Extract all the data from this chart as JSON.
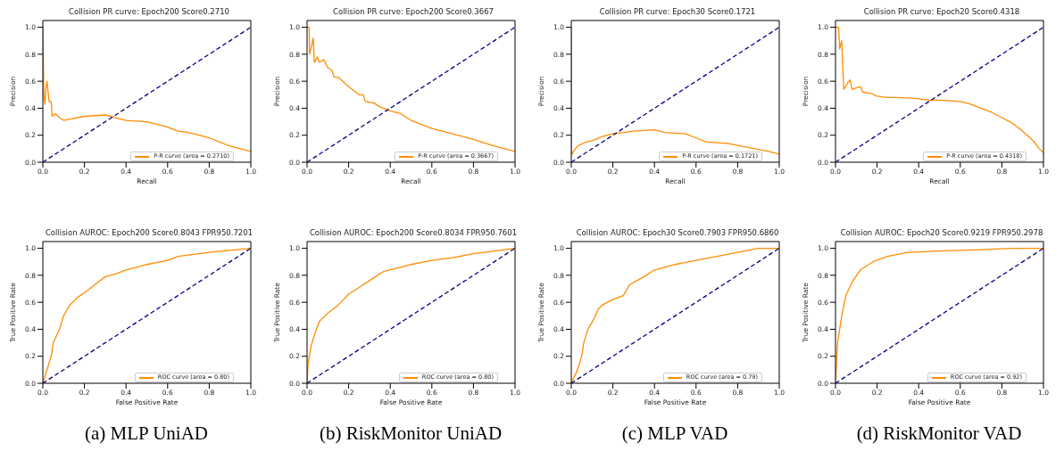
{
  "chart_data": [
    {
      "type": "line",
      "title": "Collision PR curve: Epoch200 Score0.2710",
      "xlabel": "Recall",
      "ylabel": "Precision",
      "xlim": [
        0,
        1
      ],
      "ylim": [
        0,
        1.05
      ],
      "xticks": [
        {
          "value": 0,
          "label": "0.0"
        },
        {
          "value": 0.2,
          "label": "0.2"
        },
        {
          "value": 0.4,
          "label": "0.4"
        },
        {
          "value": 0.6,
          "label": "0.6"
        },
        {
          "value": 0.8,
          "label": "0.8"
        },
        {
          "value": 1,
          "label": "1.0"
        }
      ],
      "yticks": [
        {
          "value": 0,
          "label": "0.0"
        },
        {
          "value": 0.2,
          "label": "0.2"
        },
        {
          "value": 0.4,
          "label": "0.4"
        },
        {
          "value": 0.6,
          "label": "0.6"
        },
        {
          "value": 0.8,
          "label": "0.8"
        },
        {
          "value": 1,
          "label": "1.0"
        }
      ],
      "legend": "bottom right",
      "series": [
        {
          "name": "P-R curve (area = 0.2710)",
          "color": "#ff8c00",
          "x": [
            0,
            0.005,
            0.01,
            0.015,
            0.02,
            0.03,
            0.04,
            0.045,
            0.06,
            0.08,
            0.1,
            0.13,
            0.2,
            0.3,
            0.35,
            0.4,
            0.5,
            0.6,
            0.65,
            0.7,
            0.8,
            0.85,
            0.9,
            0.95,
            1.0
          ],
          "values": [
            1.0,
            0.5,
            0.43,
            0.55,
            0.6,
            0.45,
            0.45,
            0.34,
            0.36,
            0.33,
            0.31,
            0.32,
            0.34,
            0.35,
            0.33,
            0.31,
            0.3,
            0.26,
            0.23,
            0.22,
            0.18,
            0.15,
            0.12,
            0.1,
            0.08
          ]
        },
        {
          "color": "#000080",
          "line_style": "dashed",
          "x": [
            0,
            1
          ],
          "values": [
            0,
            1
          ]
        }
      ]
    },
    {
      "type": "line",
      "title": "Collision PR curve: Epoch200 Score0.3667",
      "xlabel": "Recall",
      "ylabel": "Precision",
      "xlim": [
        0,
        1
      ],
      "ylim": [
        0,
        1.05
      ],
      "xticks": [
        {
          "value": 0,
          "label": "0.0"
        },
        {
          "value": 0.2,
          "label": "0.2"
        },
        {
          "value": 0.4,
          "label": "0.4"
        },
        {
          "value": 0.6,
          "label": "0.6"
        },
        {
          "value": 0.8,
          "label": "0.8"
        },
        {
          "value": 1,
          "label": "1.0"
        }
      ],
      "yticks": [
        {
          "value": 0,
          "label": "0.0"
        },
        {
          "value": 0.2,
          "label": "0.2"
        },
        {
          "value": 0.4,
          "label": "0.4"
        },
        {
          "value": 0.6,
          "label": "0.6"
        },
        {
          "value": 0.8,
          "label": "0.8"
        },
        {
          "value": 1,
          "label": "1.0"
        }
      ],
      "legend": "bottom right",
      "series": [
        {
          "name": "P-R curve (area = 0.3667)",
          "color": "#ff8c00",
          "x": [
            0,
            0.01,
            0.012,
            0.02,
            0.03,
            0.035,
            0.05,
            0.06,
            0.08,
            0.1,
            0.12,
            0.13,
            0.15,
            0.2,
            0.25,
            0.27,
            0.28,
            0.32,
            0.35,
            0.4,
            0.45,
            0.5,
            0.55,
            0.6,
            0.7,
            0.8,
            0.9,
            1.0
          ],
          "values": [
            1.0,
            1.0,
            0.8,
            0.85,
            0.92,
            0.74,
            0.78,
            0.74,
            0.76,
            0.7,
            0.68,
            0.63,
            0.63,
            0.56,
            0.5,
            0.5,
            0.45,
            0.44,
            0.41,
            0.38,
            0.36,
            0.31,
            0.28,
            0.25,
            0.21,
            0.17,
            0.12,
            0.08
          ]
        },
        {
          "color": "#000080",
          "line_style": "dashed",
          "x": [
            0,
            1
          ],
          "values": [
            0,
            1
          ]
        }
      ]
    },
    {
      "type": "line",
      "title": "Collision PR curve: Epoch30 Score0.1721",
      "xlabel": "Recall",
      "ylabel": "Precision",
      "xlim": [
        0,
        1
      ],
      "ylim": [
        0,
        1.05
      ],
      "xticks": [
        {
          "value": 0,
          "label": "0.0"
        },
        {
          "value": 0.2,
          "label": "0.2"
        },
        {
          "value": 0.4,
          "label": "0.4"
        },
        {
          "value": 0.6,
          "label": "0.6"
        },
        {
          "value": 0.8,
          "label": "0.8"
        },
        {
          "value": 1,
          "label": "1.0"
        }
      ],
      "yticks": [
        {
          "value": 0,
          "label": "0.0"
        },
        {
          "value": 0.2,
          "label": "0.2"
        },
        {
          "value": 0.4,
          "label": "0.4"
        },
        {
          "value": 0.6,
          "label": "0.6"
        },
        {
          "value": 0.8,
          "label": "0.8"
        },
        {
          "value": 1,
          "label": "1.0"
        }
      ],
      "legend": "bottom right",
      "series": [
        {
          "name": "P-R curve (area = 0.1721)",
          "color": "#ff8c00",
          "x": [
            0,
            0,
            0.01,
            0.03,
            0.07,
            0.1,
            0.15,
            0.2,
            0.3,
            0.4,
            0.45,
            0.55,
            0.6,
            0.65,
            0.75,
            0.85,
            0.95,
            1.0
          ],
          "values": [
            1.0,
            0.05,
            0.08,
            0.12,
            0.15,
            0.16,
            0.19,
            0.21,
            0.23,
            0.24,
            0.22,
            0.21,
            0.18,
            0.15,
            0.14,
            0.11,
            0.08,
            0.06
          ]
        },
        {
          "color": "#000080",
          "line_style": "dashed",
          "x": [
            0,
            1
          ],
          "values": [
            0,
            1
          ]
        }
      ]
    },
    {
      "type": "line",
      "title": "Collision PR curve: Epoch20 Score0.4318",
      "xlabel": "Recall",
      "ylabel": "Precision",
      "xlim": [
        0,
        1
      ],
      "ylim": [
        0,
        1.05
      ],
      "xticks": [
        {
          "value": 0,
          "label": "0.0"
        },
        {
          "value": 0.2,
          "label": "0.2"
        },
        {
          "value": 0.4,
          "label": "0.4"
        },
        {
          "value": 0.6,
          "label": "0.6"
        },
        {
          "value": 0.8,
          "label": "0.8"
        },
        {
          "value": 1,
          "label": "1.0"
        }
      ],
      "yticks": [
        {
          "value": 0,
          "label": "0.0"
        },
        {
          "value": 0.2,
          "label": "0.2"
        },
        {
          "value": 0.4,
          "label": "0.4"
        },
        {
          "value": 0.6,
          "label": "0.6"
        },
        {
          "value": 0.8,
          "label": "0.8"
        },
        {
          "value": 1,
          "label": "1.0"
        }
      ],
      "legend": "bottom right",
      "series": [
        {
          "name": "P-R curve (area = 0.4318)",
          "color": "#ff8c00",
          "x": [
            0,
            0.015,
            0.02,
            0.03,
            0.035,
            0.04,
            0.06,
            0.07,
            0.08,
            0.1,
            0.12,
            0.13,
            0.17,
            0.2,
            0.25,
            0.3,
            0.4,
            0.45,
            0.5,
            0.6,
            0.65,
            0.7,
            0.75,
            0.8,
            0.85,
            0.9,
            0.95,
            0.98,
            1.0
          ],
          "values": [
            1.0,
            1.0,
            0.84,
            0.9,
            0.7,
            0.54,
            0.59,
            0.61,
            0.54,
            0.55,
            0.56,
            0.52,
            0.51,
            0.49,
            0.48,
            0.48,
            0.47,
            0.46,
            0.46,
            0.45,
            0.43,
            0.4,
            0.37,
            0.33,
            0.29,
            0.23,
            0.16,
            0.1,
            0.07
          ]
        },
        {
          "color": "#000080",
          "line_style": "dashed",
          "x": [
            0,
            1
          ],
          "values": [
            0,
            1
          ]
        }
      ]
    },
    {
      "type": "line",
      "title": "Collision AUROC: Epoch200 Score0.8043  FPR950.7201",
      "xlabel": "False Positive Rate",
      "ylabel": "True Positive Rate",
      "annotations": [
        "(a) MLP UniAD"
      ],
      "xlim": [
        0,
        1
      ],
      "ylim": [
        0,
        1.05
      ],
      "xticks": [
        {
          "value": 0,
          "label": "0.0"
        },
        {
          "value": 0.2,
          "label": "0.2"
        },
        {
          "value": 0.4,
          "label": "0.4"
        },
        {
          "value": 0.6,
          "label": "0.6"
        },
        {
          "value": 0.8,
          "label": "0.8"
        },
        {
          "value": 1,
          "label": "1.0"
        }
      ],
      "yticks": [
        {
          "value": 0,
          "label": "0.0"
        },
        {
          "value": 0.2,
          "label": "0.2"
        },
        {
          "value": 0.4,
          "label": "0.4"
        },
        {
          "value": 0.6,
          "label": "0.6"
        },
        {
          "value": 0.8,
          "label": "0.8"
        },
        {
          "value": 1,
          "label": "1.0"
        }
      ],
      "legend": "bottom right",
      "series": [
        {
          "name": "ROC curve (area = 0.80)",
          "color": "#ff8c00",
          "x": [
            0,
            0.02,
            0.04,
            0.05,
            0.08,
            0.1,
            0.13,
            0.17,
            0.2,
            0.25,
            0.3,
            0.35,
            0.4,
            0.45,
            0.5,
            0.6,
            0.65,
            0.7,
            0.8,
            0.9,
            1.0
          ],
          "values": [
            0,
            0.1,
            0.2,
            0.3,
            0.4,
            0.5,
            0.58,
            0.64,
            0.67,
            0.73,
            0.79,
            0.81,
            0.84,
            0.86,
            0.88,
            0.91,
            0.94,
            0.95,
            0.97,
            0.985,
            1.0
          ]
        },
        {
          "color": "#000080",
          "line_style": "dashed",
          "x": [
            0,
            1
          ],
          "values": [
            0,
            1
          ]
        }
      ]
    },
    {
      "type": "line",
      "title": "Collision AUROC: Epoch200 Score0.8034  FPR950.7601",
      "xlabel": "False Positive Rate",
      "ylabel": "True Positive Rate",
      "annotations": [
        "(b) RiskMonitor UniAD"
      ],
      "xlim": [
        0,
        1
      ],
      "ylim": [
        0,
        1.05
      ],
      "xticks": [
        {
          "value": 0,
          "label": "0.0"
        },
        {
          "value": 0.2,
          "label": "0.2"
        },
        {
          "value": 0.4,
          "label": "0.4"
        },
        {
          "value": 0.6,
          "label": "0.6"
        },
        {
          "value": 0.8,
          "label": "0.8"
        },
        {
          "value": 1,
          "label": "1.0"
        }
      ],
      "yticks": [
        {
          "value": 0,
          "label": "0.0"
        },
        {
          "value": 0.2,
          "label": "0.2"
        },
        {
          "value": 0.4,
          "label": "0.4"
        },
        {
          "value": 0.6,
          "label": "0.6"
        },
        {
          "value": 0.8,
          "label": "0.8"
        },
        {
          "value": 1,
          "label": "1.0"
        }
      ],
      "legend": "bottom right",
      "series": [
        {
          "name": "ROC curve (area = 0.80)",
          "color": "#ff8c00",
          "x": [
            0,
            0.005,
            0.02,
            0.04,
            0.06,
            0.1,
            0.15,
            0.2,
            0.25,
            0.3,
            0.37,
            0.45,
            0.5,
            0.6,
            0.7,
            0.8,
            0.9,
            1.0
          ],
          "values": [
            0,
            0.15,
            0.28,
            0.38,
            0.46,
            0.52,
            0.58,
            0.66,
            0.71,
            0.76,
            0.83,
            0.86,
            0.88,
            0.91,
            0.93,
            0.96,
            0.98,
            1.0
          ]
        },
        {
          "color": "#000080",
          "line_style": "dashed",
          "x": [
            0,
            1
          ],
          "values": [
            0,
            1
          ]
        }
      ]
    },
    {
      "type": "line",
      "title": "Collision AUROC: Epoch30 Score0.7903  FPR950.6860",
      "xlabel": "False Positive Rate",
      "ylabel": "True Positive Rate",
      "annotations": [
        "(c) MLP VAD"
      ],
      "xlim": [
        0,
        1
      ],
      "ylim": [
        0,
        1.05
      ],
      "xticks": [
        {
          "value": 0,
          "label": "0.0"
        },
        {
          "value": 0.2,
          "label": "0.2"
        },
        {
          "value": 0.4,
          "label": "0.4"
        },
        {
          "value": 0.6,
          "label": "0.6"
        },
        {
          "value": 0.8,
          "label": "0.8"
        },
        {
          "value": 1,
          "label": "1.0"
        }
      ],
      "yticks": [
        {
          "value": 0,
          "label": "0.0"
        },
        {
          "value": 0.2,
          "label": "0.2"
        },
        {
          "value": 0.4,
          "label": "0.4"
        },
        {
          "value": 0.6,
          "label": "0.6"
        },
        {
          "value": 0.8,
          "label": "0.8"
        },
        {
          "value": 1,
          "label": "1.0"
        }
      ],
      "legend": "bottom right",
      "series": [
        {
          "name": "ROC curve (area = 0.79)",
          "color": "#ff8c00",
          "x": [
            0,
            0.03,
            0.05,
            0.06,
            0.08,
            0.11,
            0.13,
            0.15,
            0.2,
            0.25,
            0.28,
            0.35,
            0.4,
            0.5,
            0.6,
            0.7,
            0.8,
            0.9,
            1.0
          ],
          "values": [
            0,
            0.1,
            0.2,
            0.3,
            0.4,
            0.48,
            0.55,
            0.58,
            0.62,
            0.65,
            0.73,
            0.79,
            0.84,
            0.88,
            0.91,
            0.94,
            0.97,
            1.0,
            1.0
          ]
        },
        {
          "color": "#000080",
          "line_style": "dashed",
          "x": [
            0,
            1
          ],
          "values": [
            0,
            1
          ]
        }
      ]
    },
    {
      "type": "line",
      "title": "Collision AUROC: Epoch20 Score0.9219  FPR950.2978",
      "xlabel": "False Positive Rate",
      "ylabel": "True Positive Rate",
      "annotations": [
        "(d) RiskMonitor VAD"
      ],
      "xlim": [
        0,
        1
      ],
      "ylim": [
        0,
        1.05
      ],
      "xticks": [
        {
          "value": 0,
          "label": "0.0"
        },
        {
          "value": 0.2,
          "label": "0.2"
        },
        {
          "value": 0.4,
          "label": "0.4"
        },
        {
          "value": 0.6,
          "label": "0.6"
        },
        {
          "value": 0.8,
          "label": "0.8"
        },
        {
          "value": 1,
          "label": "1.0"
        }
      ],
      "yticks": [
        {
          "value": 0,
          "label": "0.0"
        },
        {
          "value": 0.2,
          "label": "0.2"
        },
        {
          "value": 0.4,
          "label": "0.4"
        },
        {
          "value": 0.6,
          "label": "0.6"
        },
        {
          "value": 0.8,
          "label": "0.8"
        },
        {
          "value": 1,
          "label": "1.0"
        }
      ],
      "legend": "bottom right",
      "series": [
        {
          "name": "ROC curve (area = 0.92)",
          "color": "#ff8c00",
          "x": [
            0,
            0.01,
            0.03,
            0.05,
            0.08,
            0.12,
            0.18,
            0.25,
            0.35,
            0.5,
            0.7,
            0.85,
            1.0
          ],
          "values": [
            0,
            0.3,
            0.5,
            0.65,
            0.75,
            0.84,
            0.9,
            0.94,
            0.97,
            0.98,
            0.99,
            1.0,
            1.0
          ]
        },
        {
          "color": "#000080",
          "line_style": "dashed",
          "x": [
            0,
            1
          ],
          "values": [
            0,
            1
          ]
        }
      ]
    }
  ]
}
